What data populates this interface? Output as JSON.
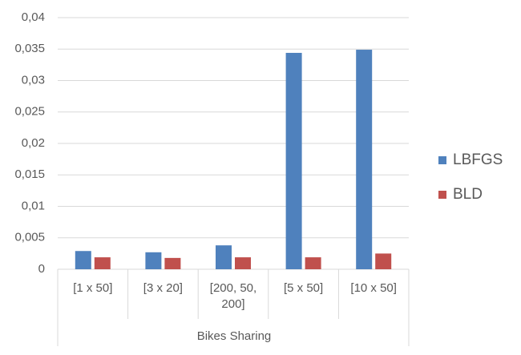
{
  "chart_data": {
    "type": "bar",
    "categories": [
      "[1 x 50]",
      "[3 x 20]",
      "[200, 50, 200]",
      "[5 x 50]",
      "[10 x 50]"
    ],
    "category_group": "Bikes Sharing",
    "series": [
      {
        "name": "LBFGS",
        "color": "#4f81bd",
        "values": [
          0.0029,
          0.0027,
          0.0038,
          0.0344,
          0.0349
        ]
      },
      {
        "name": "BLD",
        "color": "#c0504d",
        "values": [
          0.0019,
          0.0018,
          0.0019,
          0.0019,
          0.0025
        ]
      }
    ],
    "ylim": [
      0,
      0.04
    ],
    "yticks": [
      0,
      {
        "value": 0.005,
        "label": "0,005"
      },
      {
        "value": 0.01,
        "label": "0,01"
      },
      {
        "value": 0.015,
        "label": "0,015"
      },
      {
        "value": 0.02,
        "label": "0,02"
      },
      {
        "value": 0.025,
        "label": "0,025"
      },
      {
        "value": 0.03,
        "label": "0,03"
      },
      {
        "value": 0.035,
        "label": "0,035"
      },
      {
        "value": 0.04,
        "label": "0,04"
      }
    ],
    "grid": true,
    "legend": "right"
  }
}
